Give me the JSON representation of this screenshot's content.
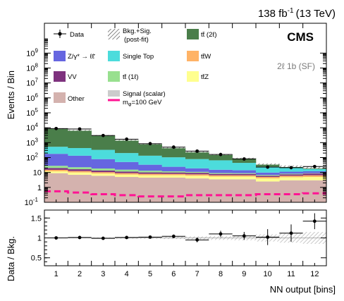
{
  "chart_data": [
    {
      "type": "bar",
      "stacked": true,
      "log_scale_y": true,
      "header": {
        "lumi_prefix": "138 fb",
        "lumi_exponent": "-1",
        "lumi_suffix": "(13 TeV)",
        "experiment": "CMS",
        "category": "2ℓ 1b (SF)"
      },
      "ylabel": "Events / Bin",
      "ylim": [
        0.1,
        100000000000
      ],
      "yticks": [
        {
          "value": 0.1,
          "base": "10",
          "exp": "-1"
        },
        {
          "value": 1,
          "base": "1",
          "exp": ""
        },
        {
          "value": 10,
          "base": "10",
          "exp": ""
        },
        {
          "value": 100,
          "base": "10",
          "exp": "2"
        },
        {
          "value": 1000,
          "base": "10",
          "exp": "3"
        },
        {
          "value": 10000,
          "base": "10",
          "exp": "4"
        },
        {
          "value": 100000,
          "base": "10",
          "exp": "5"
        },
        {
          "value": 1000000,
          "base": "10",
          "exp": "6"
        },
        {
          "value": 10000000,
          "base": "10",
          "exp": "7"
        },
        {
          "value": 100000000,
          "base": "10",
          "exp": "8"
        },
        {
          "value": 1000000000,
          "base": "10",
          "exp": "9"
        }
      ],
      "categories": [
        "1",
        "2",
        "3",
        "4",
        "5",
        "6",
        "7",
        "8",
        "9",
        "10",
        "11",
        "12"
      ],
      "series": [
        {
          "name": "Other",
          "color": "#d4b2ae",
          "values": [
            9,
            7,
            6,
            5,
            4.5,
            4.5,
            4,
            3.5,
            3.5,
            2.5,
            3,
            3
          ]
        },
        {
          "name": "tt̄Z",
          "color": "#ffff8f",
          "values": [
            3,
            3,
            2.5,
            2.2,
            2,
            2,
            2,
            1.8,
            1.8,
            1.5,
            1.8,
            2
          ]
        },
        {
          "name": "tt̄W",
          "color": "#ffb366",
          "values": [
            3,
            2.5,
            2,
            1.8,
            1.6,
            1.5,
            1.5,
            1.2,
            1.2,
            1,
            1.2,
            1.5
          ]
        },
        {
          "name": "VV",
          "color": "#7e327e",
          "values": [
            5,
            4,
            3,
            2.5,
            2,
            2,
            2,
            1.5,
            1.5,
            1,
            1.5,
            2
          ]
        },
        {
          "name": "tt̄ (1ℓ)",
          "color": "#98e08f",
          "values": [
            8,
            6,
            5,
            4,
            3,
            2,
            1.5,
            1.2,
            1,
            0.8,
            0.8,
            0.5
          ]
        },
        {
          "name": "Z/γ* → ℓℓ̄",
          "color": "#6666e0",
          "values": [
            150,
            110,
            60,
            35,
            20,
            12,
            8,
            6,
            5,
            3,
            3,
            3
          ]
        },
        {
          "name": "Single Top",
          "color": "#4cdcdc",
          "values": [
            350,
            300,
            250,
            150,
            100,
            80,
            60,
            50,
            30,
            15,
            10,
            5
          ]
        },
        {
          "name": "tt̄ (2ℓ)",
          "color": "#4a7e4a",
          "values": [
            8500,
            6500,
            2800,
            1300,
            700,
            350,
            160,
            90,
            48,
            12,
            5,
            5
          ]
        }
      ],
      "data_series": {
        "name": "Data",
        "values": [
          8800,
          8200,
          3000,
          1700,
          850,
          500,
          270,
          160,
          80,
          23,
          21,
          25
        ]
      },
      "signal_series": {
        "name": "Signal (scalar)",
        "mass_label": "m",
        "mass_sub": "φ",
        "mass_value": "=100 GeV",
        "color": "#ff1493",
        "values": [
          0.55,
          0.45,
          0.35,
          0.3,
          0.25,
          0.25,
          0.3,
          0.3,
          0.3,
          0.35,
          0.35,
          0.4
        ]
      },
      "uncertainty_band": {
        "name": "Bkg.+Sig. (post-fit)",
        "line1": "Bkg.+Sig.",
        "line2": "(post-fit)"
      },
      "legend": {
        "data": "Data",
        "band_line1": "Bkg.+Sig.",
        "band_line2": "(post-fit)",
        "ttbar2l": "tt̄ (2ℓ)",
        "dy": "Z/γ* → ℓℓ̄",
        "singletop": "Single Top",
        "ttw": "tt̄W",
        "vv": "VV",
        "ttbar1l": "tt̄ (1ℓ)",
        "ttz": "tt̄Z",
        "other": "Other",
        "signal_line1": "Signal (scalar)",
        "placement": "top"
      }
    },
    {
      "type": "scatter",
      "ylabel": "Data / Bkg.",
      "xlabel": "NN output [bins]",
      "ylim": [
        0.3,
        1.7
      ],
      "yticks": [
        "0.5",
        "1",
        "1.5"
      ],
      "x": [
        "1",
        "2",
        "3",
        "4",
        "5",
        "6",
        "7",
        "8",
        "9",
        "10",
        "11",
        "12"
      ],
      "ratio_values": [
        1.0,
        1.01,
        0.99,
        1.01,
        1.02,
        1.04,
        0.95,
        1.1,
        1.05,
        1.02,
        1.12,
        1.42
      ],
      "ratio_errors": [
        0.01,
        0.012,
        0.018,
        0.025,
        0.035,
        0.045,
        0.06,
        0.08,
        0.1,
        0.2,
        0.22,
        0.2
      ],
      "band_half_width": [
        0.01,
        0.01,
        0.015,
        0.02,
        0.025,
        0.03,
        0.04,
        0.05,
        0.06,
        0.09,
        0.12,
        0.15
      ]
    }
  ]
}
